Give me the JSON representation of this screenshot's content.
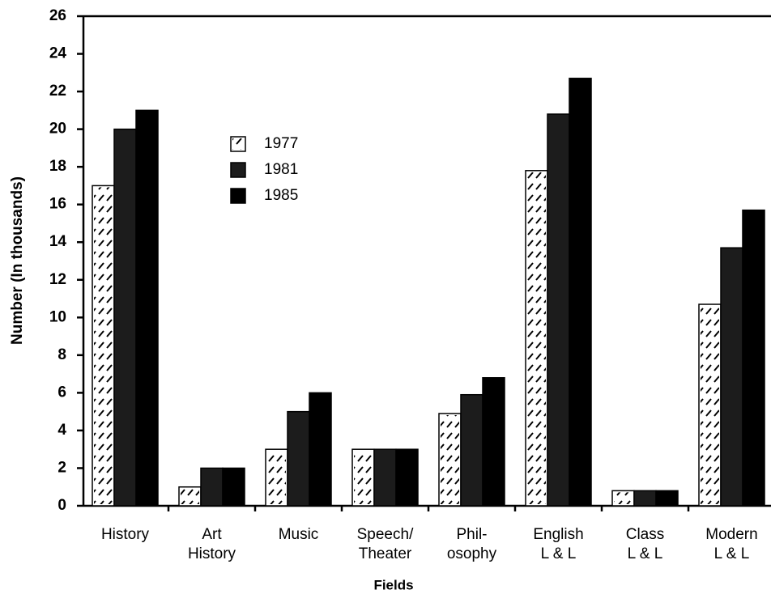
{
  "chart_data": {
    "type": "bar",
    "x_label": "Fields",
    "y_label": "Number (In thousands)",
    "categories": [
      "History",
      "Art\nHistory",
      "Music",
      "Speech/\nTheater",
      "Phil-\nosophy",
      "English\nL & L",
      "Class\nL & L",
      "Modern\nL & L"
    ],
    "series": [
      {
        "name": "1977",
        "color": "#ffffff",
        "values": [
          17,
          1,
          3,
          3,
          4.9,
          17.8,
          0.8,
          10.7
        ]
      },
      {
        "name": "1981",
        "color": "#1c1c1c",
        "values": [
          20,
          2,
          5,
          3,
          5.9,
          20.8,
          0.8,
          13.7
        ]
      },
      {
        "name": "1985",
        "color": "#000000",
        "values": [
          21,
          2,
          6,
          3,
          6.8,
          22.7,
          0.8,
          15.7
        ]
      }
    ],
    "ylim": [
      0,
      26
    ],
    "yticks": [
      0,
      2,
      4,
      6,
      8,
      10,
      12,
      14,
      16,
      18,
      20,
      22,
      24,
      26
    ]
  }
}
